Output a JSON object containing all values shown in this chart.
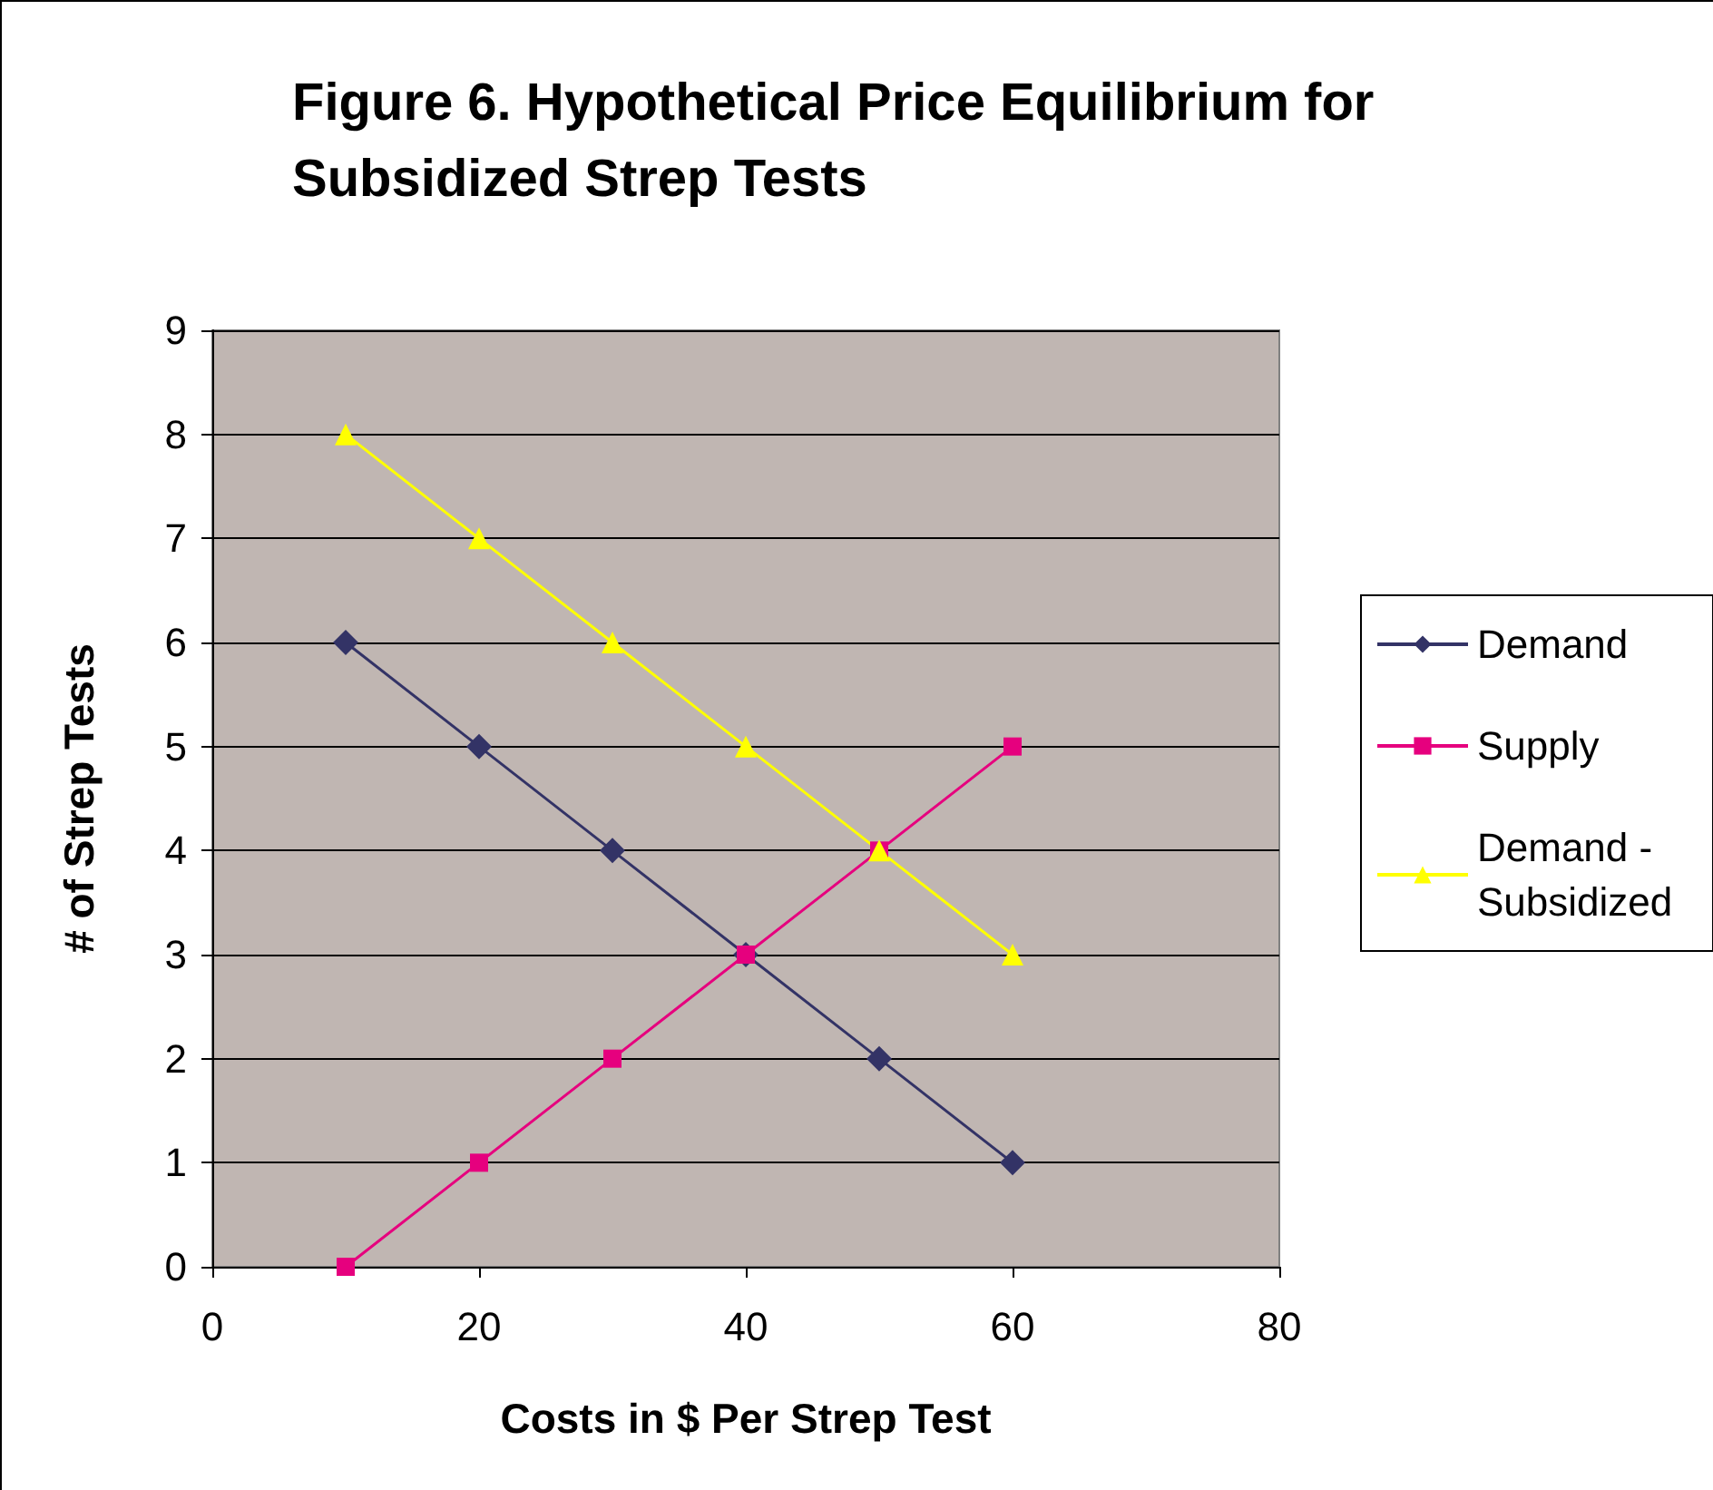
{
  "chart_data": {
    "type": "line",
    "title": "Figure 6. Hypothetical Price Equilibrium for Subsidized Strep Tests",
    "xlabel": "Costs in $ Per Strep Test",
    "ylabel": "# of Strep Tests",
    "x": [
      10,
      20,
      30,
      40,
      50,
      60
    ],
    "series": [
      {
        "name": "Demand",
        "color": "#333366",
        "marker": "diamond",
        "values": [
          6,
          5,
          4,
          3,
          2,
          1
        ]
      },
      {
        "name": "Supply",
        "color": "#e6007e",
        "marker": "square",
        "values": [
          0,
          1,
          2,
          3,
          4,
          5
        ]
      },
      {
        "name": "Demand - Subsidized",
        "color": "#ffff00",
        "marker": "triangle",
        "values": [
          8,
          7,
          6,
          5,
          4,
          3
        ]
      }
    ],
    "xlim": [
      0,
      80
    ],
    "xticks": [
      0,
      20,
      40,
      60,
      80
    ],
    "ylim": [
      0,
      9
    ],
    "yticks": [
      0,
      1,
      2,
      3,
      4,
      5,
      6,
      7,
      8,
      9
    ],
    "grid": "y",
    "legend": "right",
    "line_style": "solid"
  }
}
